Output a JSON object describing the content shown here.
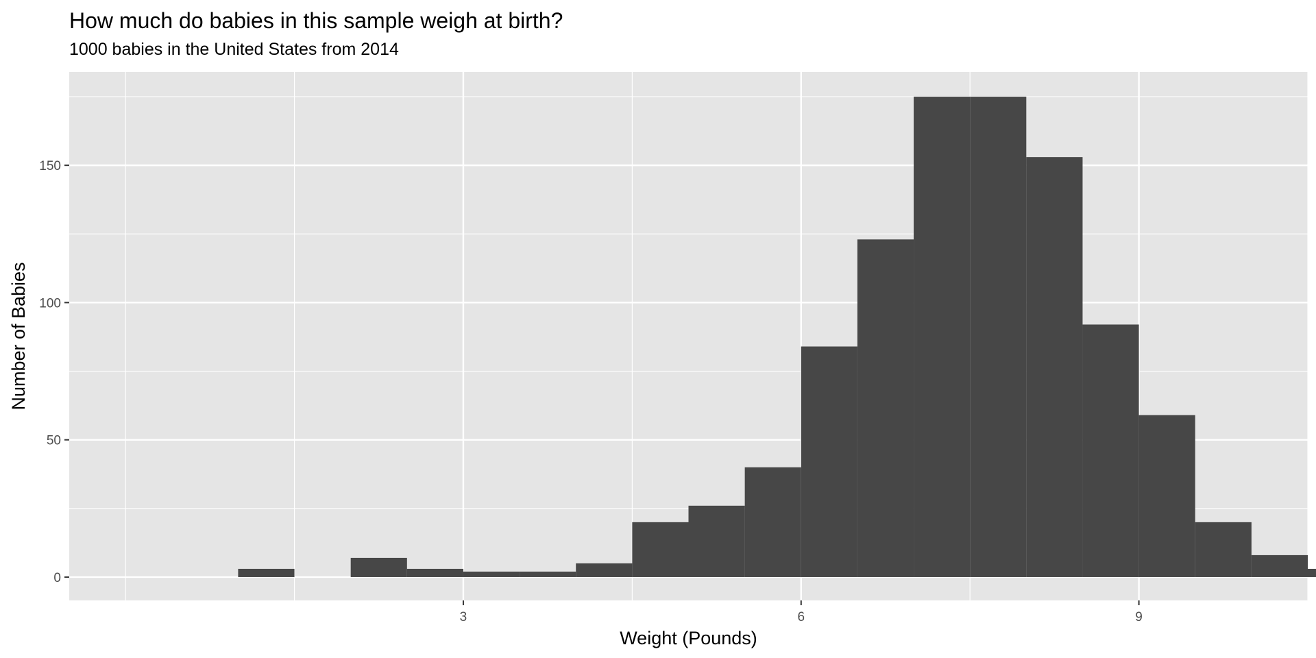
{
  "chart_data": {
    "type": "bar",
    "subtype": "histogram",
    "title": "How much do babies in this sample weigh at birth?",
    "subtitle": "1000 babies in the United States from 2014",
    "xlabel": "Weight (Pounds)",
    "ylabel": "Number of Babies",
    "xlim": [
      -0.5,
      10.5
    ],
    "ylim": [
      -8.5,
      184
    ],
    "x_ticks": [
      3,
      6,
      9
    ],
    "y_ticks": [
      0,
      50,
      100,
      150
    ],
    "bin_width": 0.5,
    "bins": [
      {
        "x0": 1.0,
        "x1": 1.5,
        "count": 3
      },
      {
        "x0": 1.5,
        "x1": 2.0,
        "count": 0
      },
      {
        "x0": 2.0,
        "x1": 2.5,
        "count": 7
      },
      {
        "x0": 2.5,
        "x1": 3.0,
        "count": 3
      },
      {
        "x0": 3.0,
        "x1": 3.5,
        "count": 2
      },
      {
        "x0": 3.5,
        "x1": 4.0,
        "count": 2
      },
      {
        "x0": 4.0,
        "x1": 4.5,
        "count": 5
      },
      {
        "x0": 4.5,
        "x1": 5.0,
        "count": 20
      },
      {
        "x0": 5.0,
        "x1": 5.5,
        "count": 26
      },
      {
        "x0": 5.5,
        "x1": 6.0,
        "count": 40
      },
      {
        "x0": 6.0,
        "x1": 6.5,
        "count": 84
      },
      {
        "x0": 6.5,
        "x1": 7.0,
        "count": 123
      },
      {
        "x0": 7.0,
        "x1": 7.5,
        "count": 175
      },
      {
        "x0": 7.5,
        "x1": 8.0,
        "count": 175
      },
      {
        "x0": 8.0,
        "x1": 8.5,
        "count": 153
      },
      {
        "x0": 8.5,
        "x1": 9.0,
        "count": 92
      },
      {
        "x0": 9.0,
        "x1": 9.5,
        "count": 59
      },
      {
        "x0": 9.5,
        "x1": 10.0,
        "count": 20
      },
      {
        "x0": 10.0,
        "x1": 10.5,
        "count": 8
      },
      {
        "x0": 10.5,
        "x1": 11.0,
        "count": 3
      }
    ],
    "grid": true,
    "colors": {
      "panel": "#e5e5e5",
      "grid": "#ffffff",
      "bar": "#474747",
      "tick_text": "#4d4d4d"
    }
  }
}
